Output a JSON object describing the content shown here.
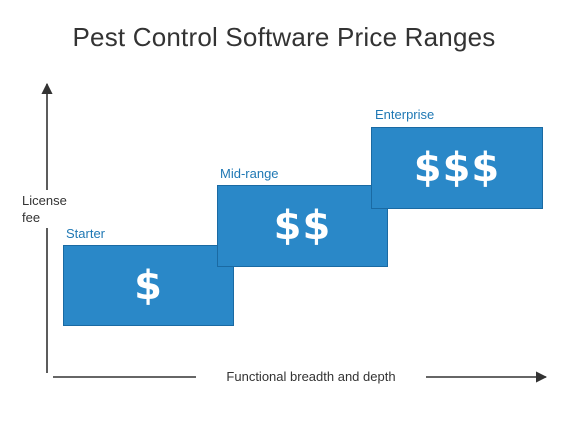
{
  "title": "Pest Control Software Price Ranges",
  "axes": {
    "y_label": "License fee",
    "x_label": "Functional breadth and depth"
  },
  "tiers": [
    {
      "name": "Starter",
      "price": "$"
    },
    {
      "name": "Mid-range",
      "price": "$$"
    },
    {
      "name": "Enterprise",
      "price": "$$$"
    }
  ],
  "colors": {
    "box_fill": "#2a88c8",
    "tier_label": "#1f78b4",
    "text": "#333333",
    "axis": "#333333"
  }
}
